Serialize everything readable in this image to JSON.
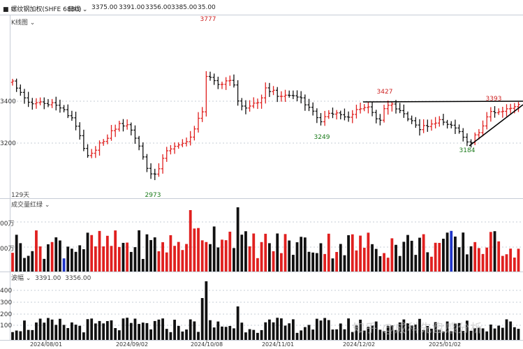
{
  "header": {
    "name": "螺纹钢加权(SHFE 6880)",
    "period": "日线",
    "open": "3375.00",
    "high": "3391.00",
    "low": "3356.00",
    "close": "3385.00",
    "change": "35.00",
    "panel_label": "K线图",
    "bar_count": "129天"
  },
  "volume_panel": {
    "label": "成交量红绿"
  },
  "wave_panel": {
    "label": "波幅",
    "v1": "3391.00",
    "v2": "3356.00"
  },
  "watermark": "知乎 @成科先盘感分析",
  "colors": {
    "up": "#e0201f",
    "down": "#111111",
    "special": "#1f35c8",
    "grid": "#c6ccd6"
  },
  "chart_data": {
    "type": "ohlc",
    "price_ticks": [
      "3400",
      "3200"
    ],
    "volume_ticks": [
      "00万",
      "00万"
    ],
    "wave_ticks": [
      "400",
      "300",
      "200",
      "100"
    ],
    "x_ticks": [
      "2024/08/01",
      "2024/09/02",
      "2024/10/08",
      "2024/11/01",
      "2024/12/02",
      "2025/01/02"
    ],
    "annotations": [
      {
        "text": "3777",
        "color": "red"
      },
      {
        "text": "2973",
        "color": "green"
      },
      {
        "text": "3249",
        "color": "green"
      },
      {
        "text": "3427",
        "color": "red"
      },
      {
        "text": "3184",
        "color": "green"
      },
      {
        "text": "3393",
        "color": "red"
      }
    ]
  }
}
